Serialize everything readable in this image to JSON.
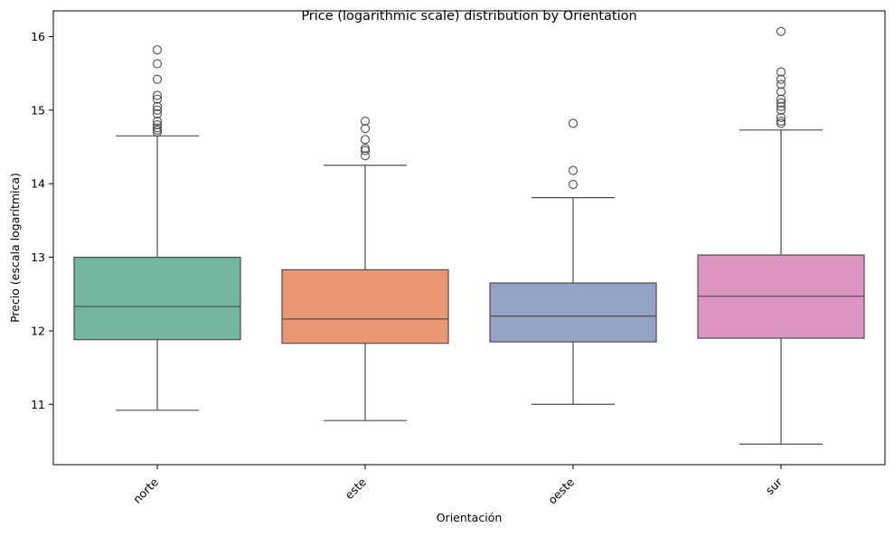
{
  "chart_data": {
    "type": "box",
    "title": "Price (logarithmic scale) distribution by Orientation",
    "xlabel": "Orientación",
    "ylabel": "Precio (escala logarítmica)",
    "ylim": [
      10.18,
      16.35
    ],
    "yticks": [
      11,
      12,
      13,
      14,
      15,
      16
    ],
    "grid": false,
    "categories": [
      "norte",
      "este",
      "oeste",
      "sur"
    ],
    "boxes": [
      {
        "category": "norte",
        "color": "#73b59f",
        "whisker_low": 10.92,
        "q1": 11.88,
        "median": 12.33,
        "q3": 13.0,
        "whisker_high": 14.65,
        "outliers": [
          14.7,
          14.73,
          14.76,
          14.8,
          14.85,
          14.95,
          15.0,
          15.05,
          15.15,
          15.2,
          15.42,
          15.63,
          15.82
        ]
      },
      {
        "category": "este",
        "color": "#e99674",
        "whisker_low": 10.78,
        "q1": 11.83,
        "median": 12.16,
        "q3": 12.83,
        "whisker_high": 14.25,
        "outliers": [
          14.38,
          14.45,
          14.48,
          14.6,
          14.75,
          14.85
        ]
      },
      {
        "category": "oeste",
        "color": "#94a3c5",
        "whisker_low": 11.0,
        "q1": 11.85,
        "median": 12.2,
        "q3": 12.65,
        "whisker_high": 13.81,
        "outliers": [
          13.99,
          14.18,
          14.82
        ]
      },
      {
        "category": "sur",
        "color": "#dc94c0",
        "whisker_low": 10.46,
        "q1": 11.9,
        "median": 12.47,
        "q3": 13.03,
        "whisker_high": 14.73,
        "outliers": [
          14.82,
          14.85,
          14.9,
          15.0,
          15.05,
          15.1,
          15.15,
          15.25,
          15.35,
          15.42,
          15.52,
          16.07
        ]
      }
    ]
  }
}
